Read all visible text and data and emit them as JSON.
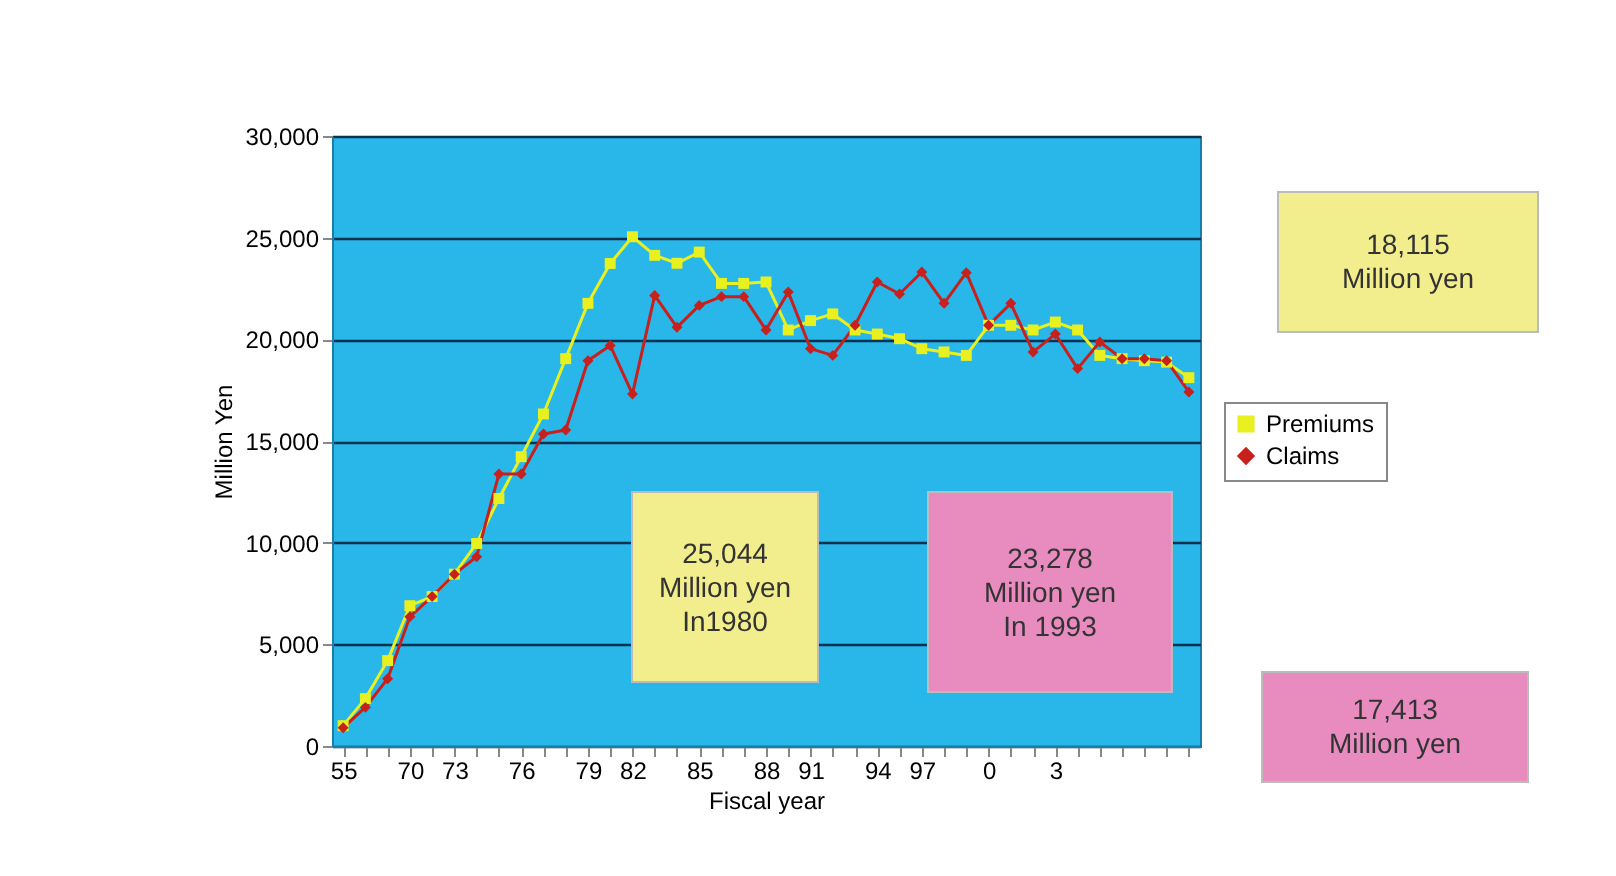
{
  "chart_data": {
    "type": "line",
    "xlabel": "Fiscal year",
    "ylabel": "Million Yen",
    "categories": [
      "55",
      null,
      null,
      "70",
      null,
      "73",
      null,
      null,
      "76",
      null,
      null,
      "79",
      null,
      "82",
      null,
      null,
      "85",
      null,
      null,
      "88",
      null,
      "91",
      null,
      null,
      "94",
      null,
      "97",
      null,
      null,
      "0",
      null,
      null,
      "3",
      null,
      null,
      null,
      null,
      null,
      null
    ],
    "series": [
      {
        "name": "Premiums",
        "color": "#e8f020",
        "marker": "square",
        "values": [
          1000,
          2330,
          4200,
          6900,
          7350,
          8450,
          9960,
          12170,
          14230,
          16330,
          19050,
          21770,
          23730,
          25044,
          24130,
          23740,
          24290,
          22750,
          22750,
          22820,
          20460,
          20920,
          21250,
          20460,
          20260,
          20030,
          19540,
          19380,
          19210,
          20690,
          20690,
          20460,
          20850,
          20460,
          19210,
          19050,
          18950,
          18880,
          18115
        ]
      },
      {
        "name": "Claims",
        "color": "#c8201c",
        "marker": "diamond",
        "values": [
          900,
          1900,
          3310,
          6360,
          7350,
          8450,
          9310,
          13380,
          13380,
          15340,
          15540,
          18950,
          19700,
          17310,
          22160,
          20590,
          21670,
          22100,
          22100,
          20460,
          22330,
          19540,
          19210,
          20690,
          22820,
          22230,
          23310,
          21770,
          23278,
          20690,
          21770,
          19380,
          20260,
          18560,
          19870,
          19050,
          19050,
          18950,
          17413
        ]
      }
    ],
    "ylim": [
      0,
      30000
    ],
    "yticks": [
      0,
      {
        "value": 5000,
        "label": "5,000"
      },
      {
        "value": 10000,
        "label": "10,000"
      },
      {
        "value": 15000,
        "label": "15,000"
      },
      {
        "value": 20000,
        "label": "20,000"
      },
      {
        "value": 25000,
        "label": "25,000"
      },
      {
        "value": 30000,
        "label": "30,000"
      }
    ],
    "grid": "y",
    "legend": "right",
    "line_style": "solid",
    "annotations": [
      "25,044\nMillion yen\nIn1980",
      "23,278\nMillion yen\nIn 1993",
      "18,115\nMillion yen",
      "17,413\nMillion yen"
    ]
  }
}
